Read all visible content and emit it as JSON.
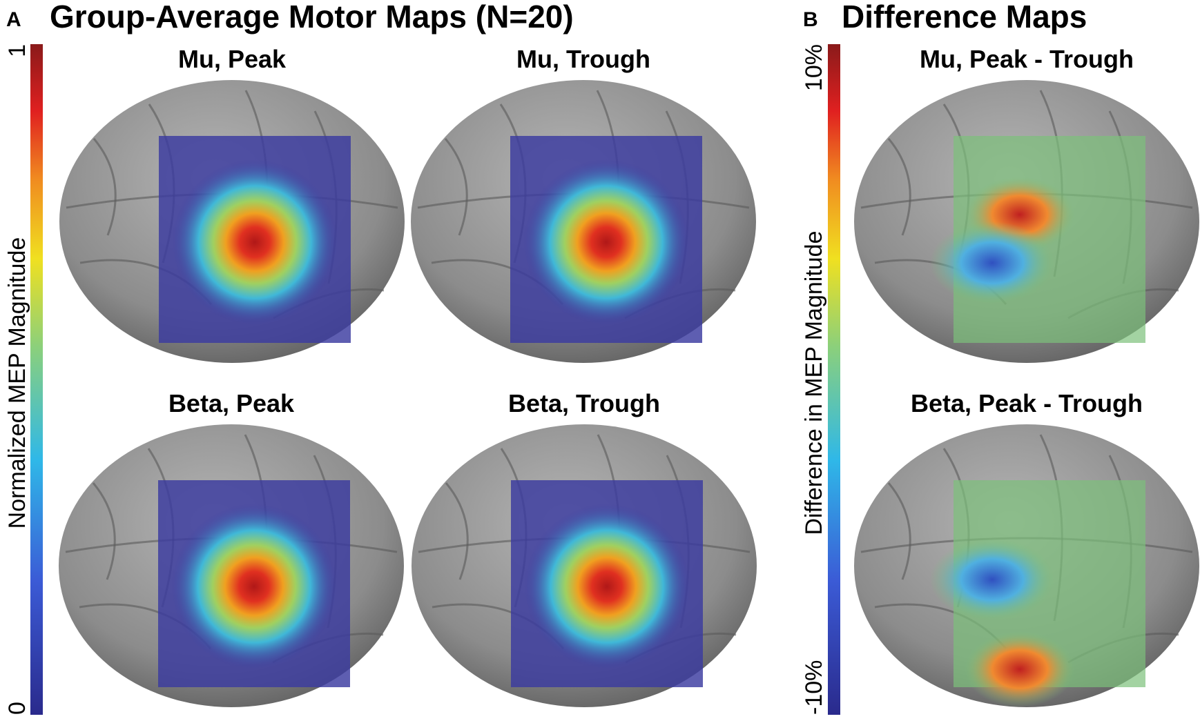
{
  "panel_a": {
    "label": "A",
    "title": "Group-Average Motor Maps (N=20)",
    "colorbar": {
      "label": "Normalized MEP Magnitude",
      "max_label": "1",
      "min_label": "0"
    },
    "maps": [
      {
        "title": "Mu, Peak"
      },
      {
        "title": "Mu, Trough"
      },
      {
        "title": "Beta, Peak"
      },
      {
        "title": "Beta, Trough"
      }
    ]
  },
  "panel_b": {
    "label": "B",
    "title": "Difference Maps",
    "colorbar": {
      "label": "Difference in MEP Magnitude",
      "max_label": "10%",
      "min_label": "-10%"
    },
    "maps": [
      {
        "title": "Mu, Peak - Trough"
      },
      {
        "title": "Beta, Peak - Trough"
      }
    ]
  }
}
